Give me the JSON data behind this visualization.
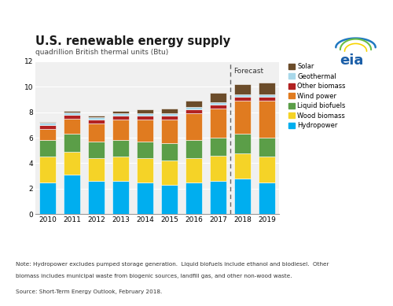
{
  "title": "U.S. renewable energy supply",
  "subtitle": "quadrillion British thermal units (Btu)",
  "years": [
    "2010",
    "2011",
    "2012",
    "2013",
    "2014",
    "2015",
    "2016",
    "2017",
    "2018",
    "2019"
  ],
  "categories": [
    "Hydropower",
    "Wood biomass",
    "Liquid biofuels",
    "Wind power",
    "Other biomass",
    "Geothermal",
    "Solar"
  ],
  "colors": [
    "#00AEEF",
    "#F5D327",
    "#5B9E48",
    "#E07B20",
    "#B22222",
    "#A8D8EA",
    "#6B4C2A"
  ],
  "data": {
    "Hydropower": [
      2.5,
      3.1,
      2.6,
      2.6,
      2.5,
      2.3,
      2.5,
      2.6,
      2.8,
      2.5
    ],
    "Wood biomass": [
      2.0,
      1.8,
      1.8,
      1.9,
      1.9,
      1.9,
      1.9,
      2.0,
      2.0,
      2.0
    ],
    "Liquid biofuels": [
      1.3,
      1.4,
      1.3,
      1.3,
      1.3,
      1.4,
      1.4,
      1.4,
      1.5,
      1.5
    ],
    "Wind power": [
      0.9,
      1.2,
      1.4,
      1.6,
      1.7,
      1.8,
      2.1,
      2.3,
      2.6,
      2.9
    ],
    "Other biomass": [
      0.3,
      0.3,
      0.3,
      0.3,
      0.3,
      0.3,
      0.3,
      0.3,
      0.3,
      0.3
    ],
    "Geothermal": [
      0.2,
      0.2,
      0.2,
      0.2,
      0.2,
      0.2,
      0.2,
      0.2,
      0.2,
      0.2
    ],
    "Solar": [
      0.05,
      0.1,
      0.15,
      0.2,
      0.3,
      0.4,
      0.5,
      0.7,
      0.8,
      0.9
    ]
  },
  "ylim": [
    0,
    12
  ],
  "yticks": [
    0,
    2,
    4,
    6,
    8,
    10,
    12
  ],
  "note1": "Note: Hydropower excludes pumped storage generation.  Liquid biofuels include ethanol and biodiesel.  Other",
  "note2": "biomass includes municipal waste from biogenic sources, landfill gas, and other non-wood waste.",
  "source": "Source: Short-Term Energy Outlook, February 2018.",
  "forecast_label": "Forecast",
  "bar_width": 0.65,
  "eia_text": "eia"
}
